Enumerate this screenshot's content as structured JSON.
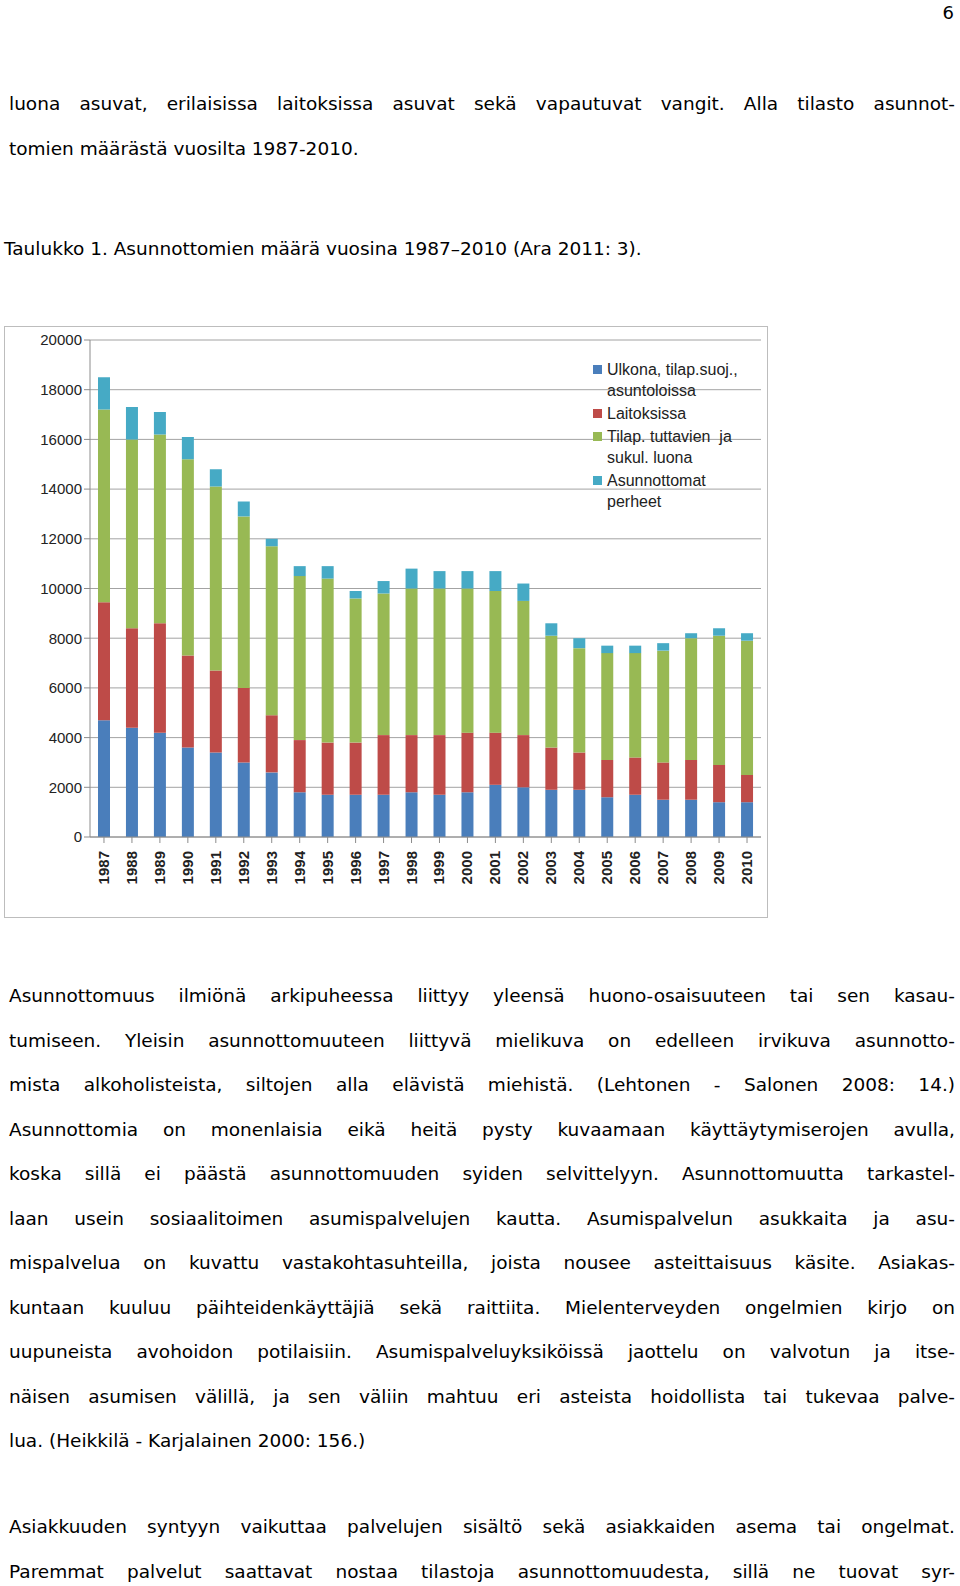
{
  "page_number": "6",
  "text_top": [
    "luona asuvat, erilaisissa laitoksissa asuvat sekä vapautuvat vangit. Alla tilasto asunnot-",
    "tomien määrästä vuosilta 1987-2010."
  ],
  "caption": "Taulukko 1. Asunnottomien määrä vuosina 1987–2010 (Ara 2011: 3).",
  "chart_data": {
    "type": "bar",
    "stacked": true,
    "grid": true,
    "legend": "top right",
    "categories": [
      "1987",
      "1988",
      "1989",
      "1990",
      "1991",
      "1992",
      "1993",
      "1994",
      "1995",
      "1996",
      "1997",
      "1998",
      "1999",
      "2000",
      "2001",
      "2002",
      "2003",
      "2004",
      "2005",
      "2006",
      "2007",
      "2008",
      "2009",
      "2010"
    ],
    "series": [
      {
        "name": "Ulkona, tilap.suoj., asuntoloissa",
        "color": "#4a7ebb",
        "values": [
          4700,
          4400,
          4200,
          3600,
          3400,
          3000,
          2600,
          1800,
          1700,
          1700,
          1700,
          1800,
          1700,
          1800,
          2100,
          2000,
          1900,
          1900,
          1600,
          1700,
          1500,
          1500,
          1400,
          1400
        ]
      },
      {
        "name": "Laitoksissa",
        "color": "#be4b48",
        "values": [
          4750,
          4000,
          4400,
          3700,
          3300,
          3000,
          2300,
          2100,
          2100,
          2100,
          2400,
          2300,
          2400,
          2400,
          2100,
          2100,
          1700,
          1500,
          1500,
          1500,
          1500,
          1600,
          1500,
          1100
        ]
      },
      {
        "name": "Tilap. tuttavien  ja sukul. luona",
        "color": "#98b954",
        "values": [
          7750,
          7600,
          7600,
          7900,
          7400,
          6900,
          6800,
          6600,
          6600,
          5800,
          5700,
          5900,
          5900,
          5800,
          5700,
          5400,
          4500,
          4200,
          4300,
          4200,
          4500,
          4900,
          5200,
          5400
        ]
      },
      {
        "name": "Asunnottomat perheet",
        "color": "#46aac5",
        "values": [
          1300,
          1300,
          900,
          900,
          700,
          600,
          300,
          400,
          500,
          300,
          500,
          800,
          700,
          700,
          800,
          700,
          500,
          400,
          300,
          300,
          300,
          200,
          300,
          300
        ]
      }
    ],
    "ylim": [
      0,
      20000
    ],
    "yticks": [
      0,
      2000,
      4000,
      6000,
      8000,
      10000,
      12000,
      14000,
      16000,
      18000,
      20000
    ]
  },
  "paragraphs": [
    [
      "Asunnottomuus ilmiönä arkipuheessa liittyy yleensä huono-osaisuuteen tai sen kasau-",
      "tumiseen. Yleisin asunnottomuuteen liittyvä mielikuva on edelleen irvikuva asunnotto-",
      "mista alkoholisteista, siltojen alla elävistä miehistä. (Lehtonen - Salonen 2008: 14.)",
      "Asunnottomia on monenlaisia eikä heitä pysty kuvaamaan käyttäytymiserojen avulla,",
      "koska sillä ei päästä asunnottomuuden syiden selvittelyyn. Asunnottomuutta tarkastel-",
      "laan usein sosiaalitoimen asumispalvelujen kautta. Asumispalvelun asukkaita ja asu-",
      "mispalvelua on kuvattu vastakohtasuhteilla, joista nousee asteittaisuus käsite. Asiakas-",
      "kuntaan kuuluu päihteidenkäyttäjiä sekä raittiita. Mielenterveyden ongelmien kirjo on",
      "uupuneista avohoidon potilaisiin. Asumispalveluyksiköissä jaottelu on valvotun ja itse-",
      "näisen asumisen välillä, ja sen väliin mahtuu eri asteista hoidollista tai tukevaa palve-",
      "lua. (Heikkilä - Karjalainen 2000: 156.)"
    ],
    [
      "Asiakkuuden syntyyn vaikuttaa palvelujen sisältö sekä asiakkaiden asema tai ongelmat.",
      "Paremmat palvelut saattavat nostaa tilastoja asunnottomuudesta, sillä ne tuovat syr-"
    ]
  ]
}
